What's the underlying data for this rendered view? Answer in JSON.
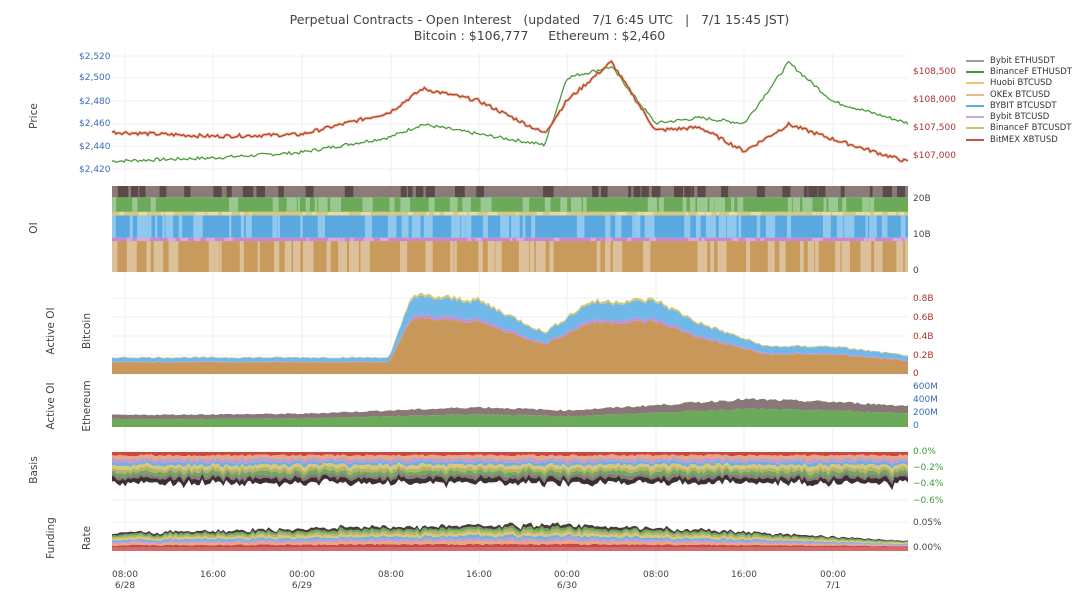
{
  "title": {
    "line1": "Perpetual Contracts - Open Interest   (updated   7/1 6:45 UTC   |   7/1 15:45 JST)",
    "line2": "Bitcoin : $106,777     Ethereum : $2,460"
  },
  "panels": {
    "price": "Price",
    "oi": "OI",
    "active_btc_line1": "Active OI",
    "active_btc_line2": "Bitcoin",
    "active_eth_line1": "Active OI",
    "active_eth_line2": "Ethereum",
    "basis": "Basis",
    "funding_line1": "Funding",
    "funding_line2": "Rate"
  },
  "price_left_ticks": [
    "$2,520",
    "$2,500",
    "$2,480",
    "$2,460",
    "$2,440",
    "$2,420"
  ],
  "price_right_ticks": [
    "$108,500",
    "$108,000",
    "$107,500",
    "$107,000"
  ],
  "oi_ticks": [
    "20B",
    "10B",
    "0"
  ],
  "active_btc_ticks": [
    "0.8B",
    "0.6B",
    "0.4B",
    "0.2B",
    "0"
  ],
  "active_eth_ticks": [
    "600M",
    "400M",
    "200M",
    "0"
  ],
  "basis_ticks": [
    "0.0%",
    "−0.2%",
    "−0.4%",
    "−0.6%"
  ],
  "funding_ticks": [
    "0.05%",
    "0.00%"
  ],
  "x_ticks": [
    {
      "time": "08:00",
      "date": "6/28"
    },
    {
      "time": "16:00",
      "date": ""
    },
    {
      "time": "00:00",
      "date": "6/29"
    },
    {
      "time": "08:00",
      "date": ""
    },
    {
      "time": "16:00",
      "date": ""
    },
    {
      "time": "00:00",
      "date": "6/30"
    },
    {
      "time": "08:00",
      "date": ""
    },
    {
      "time": "16:00",
      "date": ""
    },
    {
      "time": "00:00",
      "date": "7/1"
    }
  ],
  "legend": [
    {
      "label": "Bybit ETHUSDT",
      "color": "#a89a9a"
    },
    {
      "label": "BinanceF ETHUSDT",
      "color": "#4a9a3a"
    },
    {
      "label": "Huobi BTCUSD",
      "color": "#e8c870"
    },
    {
      "label": "OKEx BTCUSD",
      "color": "#e8b890"
    },
    {
      "label": "BYBIT BTCUSDT",
      "color": "#5ab0e0"
    },
    {
      "label": "Bybit BTCUSD",
      "color": "#c8a8e0"
    },
    {
      "label": "BinanceF BTCUSDT",
      "color": "#c8c870"
    },
    {
      "label": "BitMEX XBTUSD",
      "color": "#c85050"
    }
  ],
  "chart_data": [
    {
      "type": "line",
      "panel": "Price",
      "x": [
        "6/28 07:00",
        "6/28 16:00",
        "6/29 00:00",
        "6/29 08:00",
        "6/29 11:00",
        "6/29 16:00",
        "6/29 22:00",
        "6/30 00:00",
        "6/30 04:00",
        "6/30 08:00",
        "6/30 12:00",
        "6/30 16:00",
        "6/30 20:00",
        "7/1 00:00",
        "7/1 06:45"
      ],
      "series": [
        {
          "name": "BinanceF ETHUSDT",
          "axis": "left",
          "values": [
            2425,
            2428,
            2433,
            2447,
            2459,
            2450,
            2440,
            2502,
            2512,
            2460,
            2465,
            2460,
            2516,
            2480,
            2460
          ]
        },
        {
          "name": "BitMEX XBTUSD",
          "axis": "right",
          "values": [
            107420,
            107350,
            107380,
            107750,
            108150,
            107950,
            107400,
            107950,
            108600,
            107450,
            107500,
            107100,
            107550,
            107300,
            106920
          ]
        }
      ],
      "ylim_left": [
        2415,
        2522
      ],
      "ylim_right": [
        106750,
        108700
      ]
    },
    {
      "type": "area",
      "panel": "OI",
      "ylabel": "OI",
      "ylim": [
        0,
        22
      ],
      "unit": "B",
      "total_approx": 21
    },
    {
      "type": "area",
      "panel": "Active OI Bitcoin",
      "x": [
        "6/28 07:00",
        "6/29 08:00",
        "6/29 10:00",
        "6/29 16:00",
        "6/29 22:00",
        "6/30 02:00",
        "6/30 08:00",
        "6/30 12:00",
        "6/30 18:00",
        "7/1 00:00",
        "7/1 06:45"
      ],
      "values": [
        0.18,
        0.18,
        0.85,
        0.8,
        0.45,
        0.78,
        0.8,
        0.55,
        0.3,
        0.3,
        0.2
      ],
      "ylim": [
        0,
        0.9
      ],
      "unit": "B"
    },
    {
      "type": "area",
      "panel": "Active OI Ethereum",
      "x": [
        "6/28 07:00",
        "6/29 00:00",
        "6/29 16:00",
        "6/30 00:00",
        "6/30 08:00",
        "6/30 16:00",
        "7/1 00:00",
        "7/1 06:45"
      ],
      "values": [
        180,
        200,
        300,
        250,
        330,
        420,
        380,
        320
      ],
      "ylim": [
        0,
        650
      ],
      "unit": "M"
    },
    {
      "type": "area",
      "panel": "Basis",
      "ylim": [
        -0.65,
        0.02
      ],
      "unit": "%",
      "lower_bound_approx": -0.38
    },
    {
      "type": "area",
      "panel": "Funding Rate",
      "ylim": [
        -0.01,
        0.06
      ],
      "unit": "%",
      "stack_top_approx": [
        0.03,
        0.045,
        0.045,
        0.03,
        0.02
      ]
    }
  ]
}
